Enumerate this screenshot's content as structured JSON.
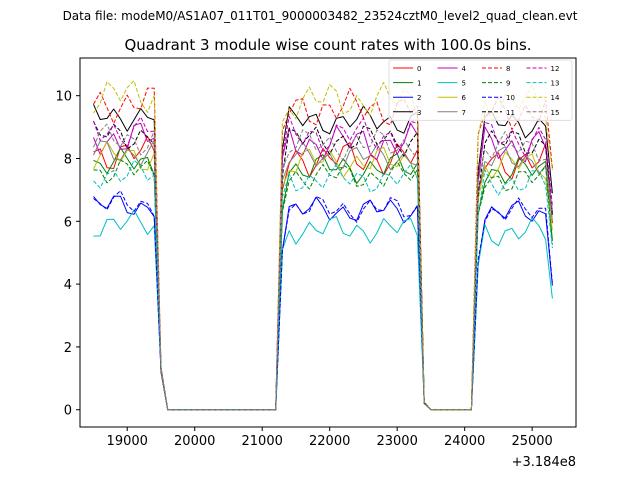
{
  "chart_data": {
    "type": "line",
    "suptitle": "Data file: modeM0/AS1A07_011T01_9000003482_23524cztM0_level2_quad_clean.evt",
    "title": "Quadrant 3 module wise count rates with 100.0s bins.",
    "xlabel": "",
    "ylabel": "",
    "x_offset_label": "+3.184e8",
    "xlim": [
      18300,
      25650
    ],
    "ylim": [
      -0.55,
      11.2
    ],
    "xticks": [
      19000,
      20000,
      21000,
      22000,
      23000,
      24000,
      25000
    ],
    "xtick_labels": [
      "19000",
      "20000",
      "21000",
      "22000",
      "23000",
      "24000",
      "25000"
    ],
    "yticks": [
      0,
      2,
      4,
      6,
      8,
      10
    ],
    "ytick_labels": [
      "0",
      "2",
      "4",
      "6",
      "8",
      "10"
    ],
    "grid": false,
    "legend": {
      "location": "top-right",
      "columns": 4
    },
    "series": [
      {
        "name": "0",
        "color": "#ff0000",
        "dashed": false,
        "level": 8.0,
        "amp": 0.38,
        "phase": 0.0
      },
      {
        "name": "1",
        "color": "#008000",
        "dashed": false,
        "level": 7.7,
        "amp": 0.32,
        "phase": 0.7
      },
      {
        "name": "2",
        "color": "#0000ff",
        "dashed": false,
        "level": 6.35,
        "amp": 0.28,
        "phase": 1.4
      },
      {
        "name": "3",
        "color": "#000000",
        "dashed": false,
        "level": 9.2,
        "amp": 0.3,
        "phase": 2.1
      },
      {
        "name": "4",
        "color": "#c000c0",
        "dashed": false,
        "level": 8.5,
        "amp": 0.4,
        "phase": 2.8
      },
      {
        "name": "5",
        "color": "#00bfbf",
        "dashed": false,
        "level": 5.75,
        "amp": 0.3,
        "phase": 3.5
      },
      {
        "name": "6",
        "color": "#bfbf00",
        "dashed": false,
        "level": 7.9,
        "amp": 0.33,
        "phase": 4.2
      },
      {
        "name": "7",
        "color": "#808080",
        "dashed": false,
        "level": 8.05,
        "amp": 0.3,
        "phase": 4.9
      },
      {
        "name": "8",
        "color": "#ff0000",
        "dashed": true,
        "level": 9.6,
        "amp": 0.4,
        "phase": 5.6
      },
      {
        "name": "9",
        "color": "#008000",
        "dashed": true,
        "level": 7.45,
        "amp": 0.3,
        "phase": 0.35
      },
      {
        "name": "10",
        "color": "#0000ff",
        "dashed": true,
        "level": 6.4,
        "amp": 0.28,
        "phase": 1.05
      },
      {
        "name": "11",
        "color": "#000000",
        "dashed": true,
        "level": 8.6,
        "amp": 0.33,
        "phase": 1.75
      },
      {
        "name": "12",
        "color": "#c000c0",
        "dashed": true,
        "level": 8.75,
        "amp": 0.38,
        "phase": 2.45
      },
      {
        "name": "13",
        "color": "#00bfbf",
        "dashed": true,
        "level": 7.35,
        "amp": 0.3,
        "phase": 3.15
      },
      {
        "name": "14",
        "color": "#bfbf00",
        "dashed": true,
        "level": 9.85,
        "amp": 0.4,
        "phase": 3.85
      },
      {
        "name": "15",
        "color": "#808080",
        "dashed": true,
        "level": 8.45,
        "amp": 0.33,
        "phase": 4.55
      }
    ],
    "time_range": [
      18500,
      25300
    ],
    "bin_size": 100,
    "active_segments": [
      [
        18500,
        19400
      ],
      [
        21300,
        23300
      ],
      [
        24200,
        25200
      ]
    ],
    "drop_notes": "Rates fall to ~1.2 at 19500, 0 from 19600-21200; ~0.2 at 23400, 0 from 23500-24100; tails dip near 25300"
  }
}
